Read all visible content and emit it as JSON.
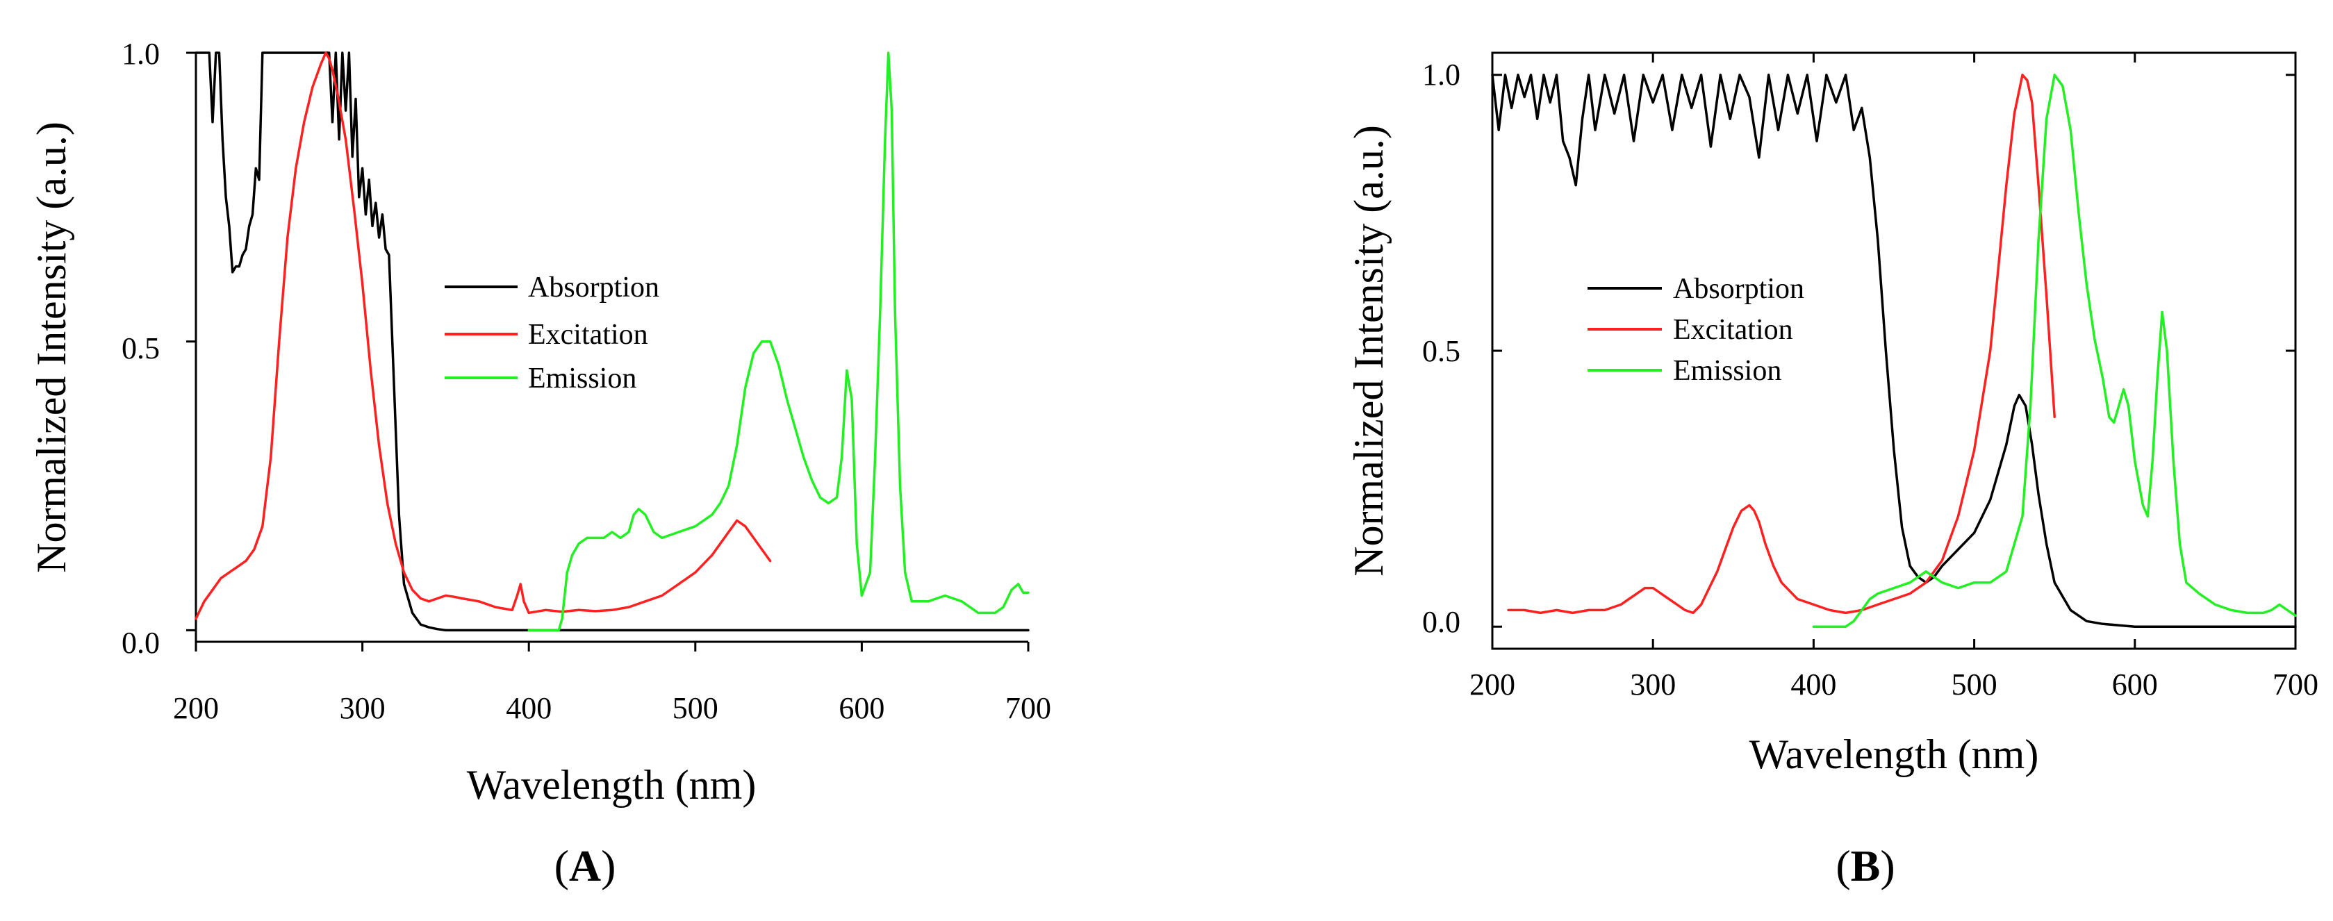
{
  "colors": {
    "absorption": "#000000",
    "excitation": "#ff2020",
    "emission": "#22f022"
  },
  "chart_data": [
    {
      "panel_label": {
        "open": "(",
        "letter": "A",
        "close": ")"
      },
      "type": "line",
      "xlabel": "Wavelength (nm)",
      "ylabel": "Normalized Intensity (a.u.)",
      "xlim": [
        200,
        700
      ],
      "ylim": [
        -0.02,
        1.0
      ],
      "xticks": [
        200,
        300,
        400,
        500,
        600,
        700
      ],
      "xtick_labels": [
        "200",
        "300",
        "400",
        "500",
        "600",
        "700"
      ],
      "yticks": [
        0.0,
        0.5,
        1.0
      ],
      "ytick_labels": [
        "0.0",
        "0.5",
        "1.0"
      ],
      "frame": "open",
      "legend": {
        "placement": "center",
        "entries": [
          {
            "label": "Absorption",
            "series": "absorption"
          },
          {
            "label": "Excitation",
            "series": "excitation"
          },
          {
            "label": "Emission",
            "series": "emission"
          }
        ]
      },
      "series": [
        {
          "name": "Absorption",
          "key": "absorption",
          "x": [
            200,
            208,
            210,
            212,
            214,
            216,
            218,
            220,
            222,
            224,
            226,
            228,
            230,
            232,
            234,
            236,
            238,
            240,
            242,
            246,
            250,
            256,
            262,
            268,
            272,
            276,
            280,
            282,
            284,
            286,
            288,
            290,
            292,
            294,
            296,
            298,
            300,
            302,
            304,
            306,
            308,
            310,
            312,
            314,
            316,
            318,
            320,
            322,
            325,
            330,
            335,
            340,
            345,
            350,
            360,
            400,
            500,
            600,
            700
          ],
          "y": [
            1.0,
            1.0,
            0.88,
            1.0,
            1.0,
            0.85,
            0.75,
            0.7,
            0.62,
            0.63,
            0.63,
            0.65,
            0.66,
            0.7,
            0.72,
            0.8,
            0.78,
            1.0,
            1.0,
            1.0,
            1.0,
            1.0,
            1.0,
            1.0,
            1.0,
            1.0,
            1.0,
            0.88,
            1.0,
            0.85,
            1.0,
            0.9,
            1.0,
            0.82,
            0.92,
            0.75,
            0.8,
            0.72,
            0.78,
            0.7,
            0.74,
            0.68,
            0.72,
            0.66,
            0.65,
            0.5,
            0.35,
            0.2,
            0.08,
            0.03,
            0.01,
            0.005,
            0.002,
            0.0,
            0.0,
            0.0,
            0.0,
            0.0,
            0.0
          ]
        },
        {
          "name": "Excitation",
          "key": "excitation",
          "x": [
            200,
            205,
            210,
            215,
            220,
            225,
            230,
            235,
            240,
            245,
            250,
            255,
            260,
            265,
            270,
            275,
            278,
            280,
            282,
            285,
            290,
            295,
            300,
            305,
            310,
            315,
            320,
            325,
            330,
            335,
            340,
            345,
            350,
            355,
            360,
            370,
            380,
            390,
            393,
            395,
            397,
            400,
            410,
            420,
            430,
            440,
            450,
            460,
            470,
            480,
            490,
            500,
            510,
            520,
            525,
            530,
            535,
            540,
            545
          ],
          "y": [
            0.02,
            0.05,
            0.07,
            0.09,
            0.1,
            0.11,
            0.12,
            0.14,
            0.18,
            0.3,
            0.5,
            0.68,
            0.8,
            0.88,
            0.94,
            0.98,
            1.0,
            0.99,
            0.97,
            0.93,
            0.85,
            0.73,
            0.6,
            0.45,
            0.32,
            0.22,
            0.15,
            0.1,
            0.07,
            0.055,
            0.05,
            0.055,
            0.06,
            0.058,
            0.055,
            0.05,
            0.04,
            0.035,
            0.06,
            0.08,
            0.05,
            0.03,
            0.035,
            0.032,
            0.035,
            0.033,
            0.035,
            0.04,
            0.05,
            0.06,
            0.08,
            0.1,
            0.13,
            0.17,
            0.19,
            0.18,
            0.16,
            0.14,
            0.12
          ]
        },
        {
          "name": "Emission",
          "key": "emission",
          "x": [
            400,
            405,
            410,
            415,
            418,
            420,
            423,
            426,
            430,
            435,
            440,
            445,
            450,
            455,
            460,
            463,
            466,
            470,
            475,
            480,
            490,
            500,
            510,
            515,
            520,
            525,
            530,
            535,
            540,
            545,
            550,
            555,
            560,
            565,
            570,
            575,
            580,
            585,
            588,
            591,
            594,
            597,
            600,
            605,
            608,
            611,
            614,
            616,
            618,
            620,
            623,
            626,
            630,
            640,
            650,
            660,
            670,
            680,
            685,
            690,
            694,
            697,
            700
          ],
          "y": [
            0.0,
            0.0,
            0.0,
            0.0,
            0.0,
            0.02,
            0.1,
            0.13,
            0.15,
            0.16,
            0.16,
            0.16,
            0.17,
            0.16,
            0.17,
            0.2,
            0.21,
            0.2,
            0.17,
            0.16,
            0.17,
            0.18,
            0.2,
            0.22,
            0.25,
            0.32,
            0.42,
            0.48,
            0.5,
            0.5,
            0.46,
            0.4,
            0.35,
            0.3,
            0.26,
            0.23,
            0.22,
            0.23,
            0.3,
            0.45,
            0.4,
            0.15,
            0.06,
            0.1,
            0.3,
            0.55,
            0.85,
            1.0,
            0.9,
            0.55,
            0.25,
            0.1,
            0.05,
            0.05,
            0.06,
            0.05,
            0.03,
            0.03,
            0.04,
            0.07,
            0.08,
            0.065,
            0.065
          ]
        }
      ]
    },
    {
      "panel_label": {
        "open": "(",
        "letter": "B",
        "close": ")"
      },
      "type": "line",
      "xlabel": "Wavelength (nm)",
      "ylabel": "Normalized Intensity (a.u.)",
      "xlim": [
        200,
        700
      ],
      "ylim": [
        -0.04,
        1.04
      ],
      "xticks": [
        200,
        300,
        400,
        500,
        600,
        700
      ],
      "xtick_labels": [
        "200",
        "300",
        "400",
        "500",
        "600",
        "700"
      ],
      "yticks": [
        0.0,
        0.5,
        1.0
      ],
      "ytick_labels": [
        "0.0",
        "0.5",
        "1.0"
      ],
      "frame": "box",
      "legend": {
        "placement": "center-left",
        "entries": [
          {
            "label": "Absorption",
            "series": "absorption"
          },
          {
            "label": "Excitation",
            "series": "excitation"
          },
          {
            "label": "Emission",
            "series": "emission"
          }
        ]
      },
      "series": [
        {
          "name": "Absorption",
          "key": "absorption",
          "x": [
            200,
            204,
            208,
            212,
            216,
            220,
            224,
            228,
            232,
            236,
            240,
            244,
            248,
            252,
            256,
            260,
            264,
            270,
            276,
            282,
            288,
            294,
            300,
            306,
            312,
            318,
            324,
            330,
            336,
            342,
            348,
            354,
            360,
            366,
            372,
            378,
            384,
            390,
            396,
            402,
            408,
            414,
            420,
            425,
            430,
            435,
            440,
            445,
            450,
            455,
            460,
            465,
            470,
            475,
            480,
            490,
            500,
            510,
            520,
            525,
            528,
            532,
            536,
            540,
            545,
            550,
            560,
            570,
            580,
            600,
            650,
            700
          ],
          "y": [
            1.0,
            0.9,
            1.0,
            0.94,
            1.0,
            0.96,
            1.0,
            0.92,
            1.0,
            0.95,
            1.0,
            0.88,
            0.85,
            0.8,
            0.92,
            1.0,
            0.9,
            1.0,
            0.93,
            1.0,
            0.88,
            1.0,
            0.95,
            1.0,
            0.9,
            1.0,
            0.94,
            1.0,
            0.87,
            1.0,
            0.92,
            1.0,
            0.96,
            0.85,
            1.0,
            0.9,
            1.0,
            0.93,
            1.0,
            0.88,
            1.0,
            0.95,
            1.0,
            0.9,
            0.94,
            0.85,
            0.7,
            0.5,
            0.32,
            0.18,
            0.11,
            0.09,
            0.08,
            0.09,
            0.11,
            0.14,
            0.17,
            0.23,
            0.33,
            0.4,
            0.42,
            0.4,
            0.33,
            0.24,
            0.15,
            0.08,
            0.03,
            0.01,
            0.005,
            0.0,
            0.0,
            0.0
          ]
        },
        {
          "name": "Excitation",
          "key": "excitation",
          "x": [
            210,
            220,
            230,
            240,
            250,
            260,
            270,
            280,
            285,
            290,
            295,
            300,
            305,
            310,
            320,
            325,
            330,
            335,
            340,
            345,
            350,
            355,
            360,
            363,
            366,
            370,
            375,
            380,
            390,
            400,
            410,
            420,
            430,
            440,
            450,
            460,
            470,
            480,
            490,
            500,
            510,
            515,
            520,
            525,
            530,
            533,
            536,
            540,
            545,
            550
          ],
          "y": [
            0.03,
            0.03,
            0.025,
            0.03,
            0.025,
            0.03,
            0.03,
            0.04,
            0.05,
            0.06,
            0.07,
            0.07,
            0.06,
            0.05,
            0.03,
            0.025,
            0.04,
            0.07,
            0.1,
            0.14,
            0.18,
            0.21,
            0.22,
            0.21,
            0.19,
            0.15,
            0.11,
            0.08,
            0.05,
            0.04,
            0.03,
            0.025,
            0.03,
            0.04,
            0.05,
            0.06,
            0.08,
            0.12,
            0.2,
            0.32,
            0.5,
            0.65,
            0.8,
            0.93,
            1.0,
            0.99,
            0.95,
            0.8,
            0.6,
            0.38
          ]
        },
        {
          "name": "Emission",
          "key": "emission",
          "x": [
            400,
            410,
            420,
            425,
            430,
            435,
            440,
            450,
            460,
            470,
            480,
            490,
            500,
            510,
            520,
            530,
            535,
            540,
            545,
            550,
            555,
            560,
            565,
            570,
            575,
            580,
            584,
            587,
            590,
            593,
            596,
            600,
            605,
            608,
            611,
            614,
            617,
            620,
            624,
            628,
            632,
            640,
            650,
            660,
            670,
            680,
            685,
            690,
            695,
            700
          ],
          "y": [
            0.0,
            0.0,
            0.0,
            0.01,
            0.03,
            0.05,
            0.06,
            0.07,
            0.08,
            0.1,
            0.08,
            0.07,
            0.08,
            0.08,
            0.1,
            0.2,
            0.4,
            0.7,
            0.92,
            1.0,
            0.98,
            0.9,
            0.75,
            0.62,
            0.52,
            0.45,
            0.38,
            0.37,
            0.4,
            0.43,
            0.4,
            0.3,
            0.22,
            0.2,
            0.3,
            0.45,
            0.57,
            0.5,
            0.3,
            0.15,
            0.08,
            0.06,
            0.04,
            0.03,
            0.025,
            0.025,
            0.03,
            0.04,
            0.03,
            0.02
          ]
        }
      ]
    }
  ]
}
